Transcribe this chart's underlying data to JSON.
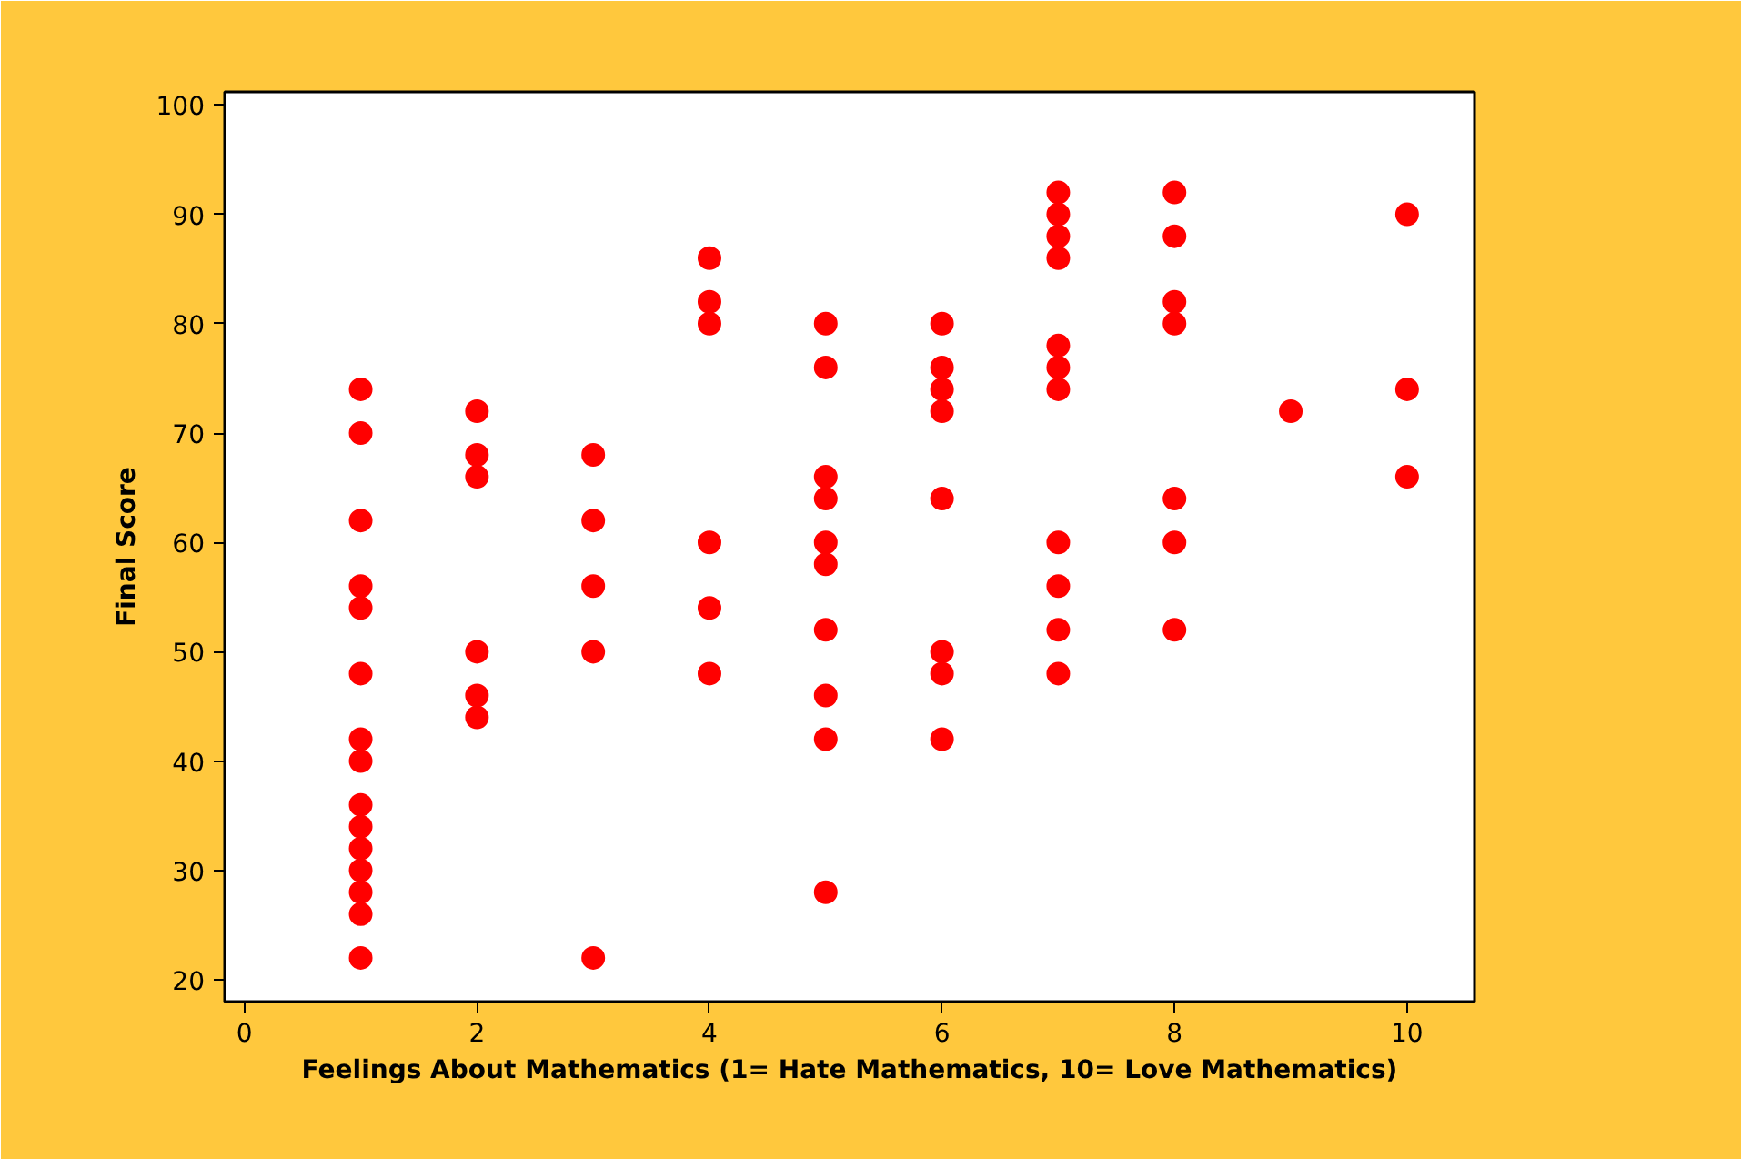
{
  "chart_data": {
    "type": "scatter",
    "xlabel": "Feelings About Mathematics (1= Hate Mathematics, 10= Love Mathematics)",
    "ylabel": "Final Score",
    "xlim": [
      -0.17,
      10.58
    ],
    "ylim": [
      18,
      101.2
    ],
    "xticks": [
      0,
      2,
      4,
      6,
      8,
      10
    ],
    "yticks": [
      20,
      30,
      40,
      50,
      60,
      70,
      80,
      90,
      100
    ],
    "grid": false,
    "marker": "circle",
    "series": [
      {
        "color": "#ff0000",
        "x": [
          1,
          1,
          1,
          1,
          1,
          1,
          1,
          1,
          1,
          1,
          1,
          1,
          1,
          1,
          1,
          2,
          2,
          2,
          2,
          2,
          2,
          3,
          3,
          3,
          3,
          3,
          4,
          4,
          4,
          4,
          4,
          4,
          5,
          5,
          5,
          5,
          5,
          5,
          5,
          5,
          5,
          5,
          6,
          6,
          6,
          6,
          6,
          6,
          6,
          6,
          7,
          7,
          7,
          7,
          7,
          7,
          7,
          7,
          7,
          7,
          7,
          8,
          8,
          8,
          8,
          8,
          8,
          8,
          9,
          10,
          10,
          10
        ],
        "values": [
          74,
          70,
          62,
          56,
          54,
          48,
          42,
          40,
          36,
          34,
          32,
          30,
          28,
          26,
          22,
          72,
          68,
          66,
          50,
          46,
          44,
          68,
          62,
          56,
          50,
          22,
          86,
          82,
          80,
          60,
          54,
          48,
          80,
          76,
          66,
          64,
          60,
          58,
          52,
          46,
          42,
          28,
          80,
          76,
          74,
          72,
          64,
          50,
          48,
          42,
          92,
          90,
          88,
          86,
          78,
          76,
          74,
          60,
          56,
          52,
          48,
          92,
          88,
          82,
          80,
          64,
          60,
          52,
          72,
          90,
          74,
          66
        ]
      }
    ]
  }
}
